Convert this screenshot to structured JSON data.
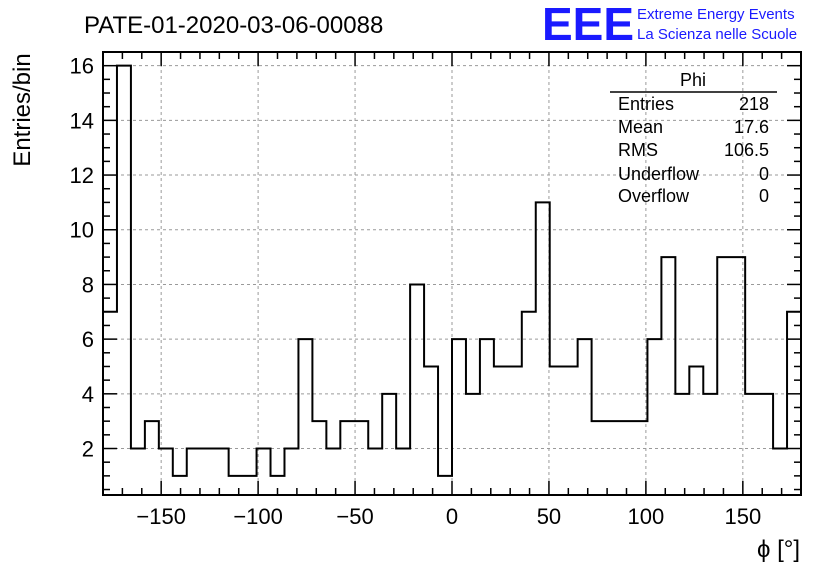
{
  "title": "PATE-01-2020-03-06-00088",
  "logo": {
    "mark": "EEE",
    "line1": "Extreme Energy Events",
    "line2": "La Scienza nelle Scuole",
    "color": "#1a1aff"
  },
  "stats_box": {
    "name": "Phi",
    "rows": [
      {
        "label": "Entries",
        "value": "218"
      },
      {
        "label": "Mean",
        "value": "17.6"
      },
      {
        "label": "RMS",
        "value": "106.5"
      },
      {
        "label": "Underflow",
        "value": "0"
      },
      {
        "label": "Overflow",
        "value": "0"
      }
    ]
  },
  "chart_data": {
    "type": "histogram",
    "title": "PATE-01-2020-03-06-00088",
    "xlabel": "ϕ [°]",
    "ylabel": "Entries/bin",
    "xlim": [
      -180,
      180
    ],
    "ylim": [
      0.3,
      16.5
    ],
    "bin_width": 7.2,
    "grid": true,
    "x_ticks": [
      -150,
      -100,
      -50,
      0,
      50,
      100,
      150
    ],
    "x_tick_labels": [
      "−150",
      "−100",
      "−50",
      "0",
      "50",
      "100",
      "150"
    ],
    "y_ticks": [
      2,
      4,
      6,
      8,
      10,
      12,
      14,
      16
    ],
    "y_tick_labels": [
      "2",
      "4",
      "6",
      "8",
      "10",
      "12",
      "14",
      "16"
    ],
    "values": [
      7,
      16,
      2,
      3,
      2,
      1,
      2,
      2,
      2,
      1,
      1,
      2,
      1,
      2,
      6,
      3,
      2,
      3,
      3,
      2,
      4,
      2,
      8,
      5,
      1,
      6,
      4,
      6,
      5,
      5,
      7,
      11,
      5,
      5,
      6,
      3,
      3,
      3,
      3,
      6,
      9,
      4,
      5,
      4,
      9,
      9,
      4,
      4,
      2,
      7
    ]
  }
}
